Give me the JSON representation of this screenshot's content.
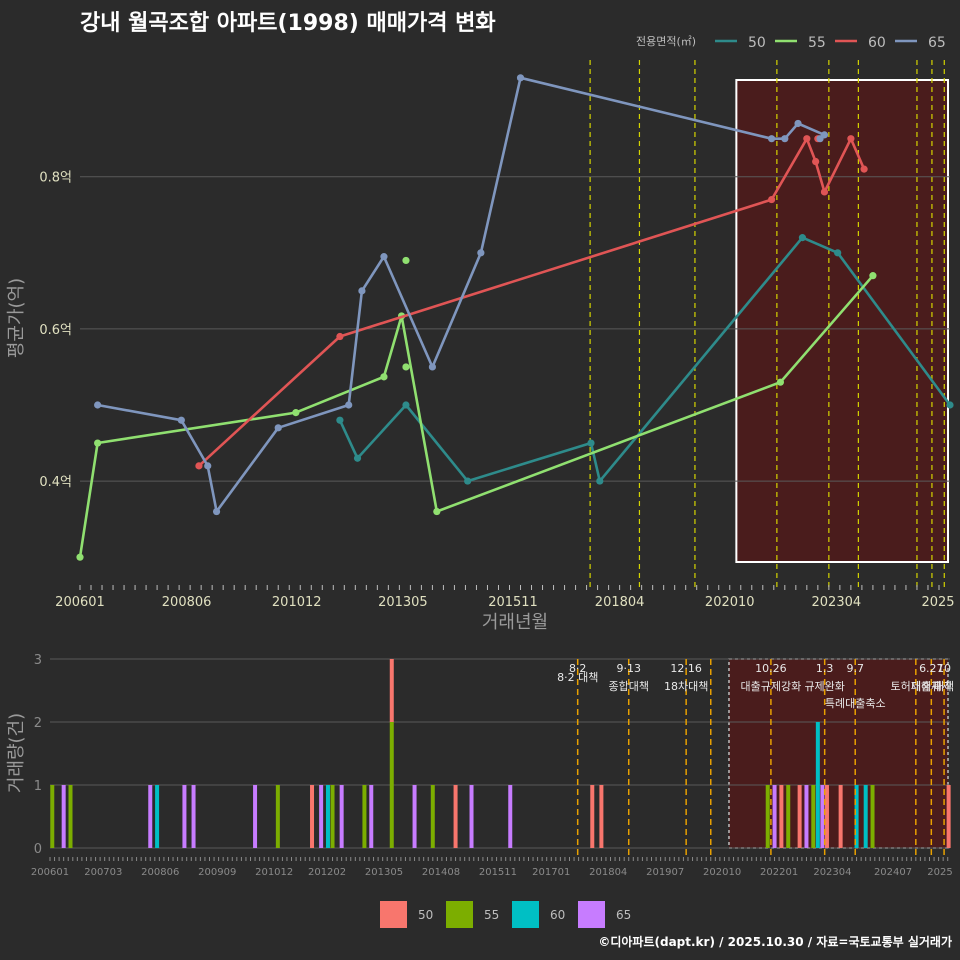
{
  "title": "강내 월곡조합 아파트(1998) 매매가격 변화",
  "footer": "©디아파트(dapt.kr) / 2025.10.30 / 자료=국토교통부 실거래가",
  "colors": {
    "50": "#2e8b8b",
    "55": "#90e070",
    "60": "#e05555",
    "65": "#7f96be"
  },
  "bar_colors": {
    "50": "#f8766d",
    "55": "#7cae00",
    "60": "#00bfc4",
    "65": "#c77cff"
  },
  "chart_data": [
    {
      "type": "line",
      "title": "강내 월곡조합 아파트(1998) 매매가격 변화",
      "xlabel": "거래년월",
      "ylabel": "평균가(억)",
      "xlim": [
        2006.0,
        2025.75
      ],
      "ylim": [
        0.27,
        0.96
      ],
      "x_ticks": [
        "200601",
        "200806",
        "201012",
        "201305",
        "201511",
        "201804",
        "202010",
        "202304",
        "2025"
      ],
      "y_ticks": [
        "0.4억",
        "0.6억",
        "0.8억"
      ],
      "legend_title": "전용면적(㎡)",
      "legend_position": "top-right",
      "highlight_range": [
        2020.9,
        2025.75
      ],
      "event_lines": [
        2017.58,
        2018.7,
        2019.96,
        2021.82,
        2023.0,
        2023.67,
        2025.0,
        2025.34,
        2025.62
      ],
      "series": [
        {
          "name": "50",
          "points": [
            [
              2011.9,
              0.48
            ],
            [
              2012.3,
              0.43
            ],
            [
              2013.4,
              0.5
            ],
            [
              2014.8,
              0.4
            ],
            [
              2017.6,
              0.45
            ],
            [
              2017.8,
              0.4
            ],
            [
              2022.4,
              0.72
            ],
            [
              2023.2,
              0.7
            ],
            [
              2025.75,
              0.5
            ]
          ]
        },
        {
          "name": "55",
          "points": [
            [
              2006.0,
              0.3
            ],
            [
              2006.4,
              0.45
            ],
            [
              2010.9,
              0.49
            ],
            [
              2012.9,
              0.537
            ],
            [
              2013.3,
              0.617
            ],
            [
              2014.1,
              0.36
            ],
            [
              2021.9,
              0.53
            ],
            [
              2024.0,
              0.67
            ]
          ],
          "extra": [
            [
              2013.4,
              0.69
            ],
            [
              2013.4,
              0.55
            ]
          ]
        },
        {
          "name": "60",
          "points": [
            [
              2008.7,
              0.42
            ],
            [
              2011.9,
              0.59
            ],
            [
              2021.7,
              0.77
            ],
            [
              2022.5,
              0.85
            ],
            [
              2022.7,
              0.82
            ],
            [
              2022.9,
              0.78
            ],
            [
              2023.5,
              0.85
            ],
            [
              2023.8,
              0.81
            ]
          ],
          "extra": [
            [
              2022.75,
              0.85
            ]
          ]
        },
        {
          "name": "65",
          "points": [
            [
              2006.4,
              0.5
            ],
            [
              2008.3,
              0.48
            ],
            [
              2008.9,
              0.42
            ],
            [
              2009.1,
              0.36
            ],
            [
              2010.5,
              0.47
            ],
            [
              2012.1,
              0.5
            ],
            [
              2012.4,
              0.65
            ],
            [
              2012.9,
              0.695
            ],
            [
              2014.0,
              0.55
            ],
            [
              2015.1,
              0.7
            ],
            [
              2016.0,
              0.93
            ],
            [
              2021.7,
              0.85
            ],
            [
              2022.0,
              0.85
            ],
            [
              2022.3,
              0.87
            ],
            [
              2022.9,
              0.855
            ],
            [
              2022.8,
              0.85
            ]
          ]
        }
      ]
    },
    {
      "type": "bar",
      "ylabel": "거래량(건)",
      "xlim": [
        2006.0,
        2025.75
      ],
      "ylim": [
        0,
        3
      ],
      "y_ticks": [
        "0",
        "1",
        "2",
        "3"
      ],
      "x_ticks": [
        "200601",
        "200703",
        "200806",
        "200909",
        "201012",
        "201202",
        "201305",
        "201408",
        "201511",
        "201701",
        "201804",
        "201907",
        "202010",
        "202201",
        "202304",
        "202407",
        "2025"
      ],
      "highlight_range": [
        2020.9,
        2025.75
      ],
      "bars": [
        {
          "x": 2006.05,
          "s": "55",
          "v": 1
        },
        {
          "x": 2006.3,
          "s": "65",
          "v": 1
        },
        {
          "x": 2006.45,
          "s": "55",
          "v": 1
        },
        {
          "x": 2008.2,
          "s": "65",
          "v": 1
        },
        {
          "x": 2008.35,
          "s": "60",
          "v": 1
        },
        {
          "x": 2008.95,
          "s": "65",
          "v": 1
        },
        {
          "x": 2009.15,
          "s": "65",
          "v": 1
        },
        {
          "x": 2010.5,
          "s": "65",
          "v": 1
        },
        {
          "x": 2011.0,
          "s": "55",
          "v": 1
        },
        {
          "x": 2011.75,
          "s": "50",
          "v": 1
        },
        {
          "x": 2011.95,
          "s": "65",
          "v": 1
        },
        {
          "x": 2012.1,
          "s": "60",
          "v": 1
        },
        {
          "x": 2012.2,
          "s": "55",
          "v": 1
        },
        {
          "x": 2012.4,
          "s": "65",
          "v": 1
        },
        {
          "x": 2012.9,
          "s": "55",
          "v": 1
        },
        {
          "x": 2013.05,
          "s": "65",
          "v": 1
        },
        {
          "x": 2013.5,
          "s": "55",
          "v": 2,
          "top": "50",
          "top_v": 1
        },
        {
          "x": 2014.0,
          "s": "65",
          "v": 1
        },
        {
          "x": 2014.4,
          "s": "55",
          "v": 1
        },
        {
          "x": 2014.9,
          "s": "50",
          "v": 1
        },
        {
          "x": 2015.25,
          "s": "65",
          "v": 1
        },
        {
          "x": 2016.1,
          "s": "65",
          "v": 1
        },
        {
          "x": 2017.9,
          "s": "50",
          "v": 1
        },
        {
          "x": 2018.1,
          "s": "50",
          "v": 1
        },
        {
          "x": 2021.75,
          "s": "55",
          "v": 1
        },
        {
          "x": 2021.9,
          "s": "65",
          "v": 1
        },
        {
          "x": 2022.05,
          "s": "50",
          "v": 1
        },
        {
          "x": 2022.2,
          "s": "55",
          "v": 1
        },
        {
          "x": 2022.45,
          "s": "50",
          "v": 1
        },
        {
          "x": 2022.6,
          "s": "65",
          "v": 1
        },
        {
          "x": 2022.75,
          "s": "55",
          "v": 1
        },
        {
          "x": 2022.85,
          "s": "60",
          "v": 2
        },
        {
          "x": 2022.95,
          "s": "65",
          "v": 1
        },
        {
          "x": 2023.05,
          "s": "50",
          "v": 1
        },
        {
          "x": 2023.35,
          "s": "50",
          "v": 1
        },
        {
          "x": 2023.7,
          "s": "60",
          "v": 1
        },
        {
          "x": 2023.9,
          "s": "60",
          "v": 1
        },
        {
          "x": 2024.05,
          "s": "55",
          "v": 1
        },
        {
          "x": 2025.72,
          "s": "50",
          "v": 1
        }
      ],
      "events": [
        {
          "x": 2017.58,
          "date": "8·2",
          "label": "8·2 대책"
        },
        {
          "x": 2018.7,
          "date": "9·13",
          "label": "종합대책"
        },
        {
          "x": 2019.96,
          "date": "12·16",
          "label": "18차대책"
        },
        {
          "x": 2020.5,
          "date": "",
          "label": ""
        },
        {
          "x": 2021.82,
          "date": "10.26",
          "label": "대출규제강화"
        },
        {
          "x": 2023.0,
          "date": "1.3",
          "label": "규제완화"
        },
        {
          "x": 2023.67,
          "date": "9.7",
          "label": "특례대출축소"
        },
        {
          "x": 2025.0,
          "date": "",
          "label": "토허제해제"
        },
        {
          "x": 2025.34,
          "date": "6.27",
          "label": "대출규제"
        },
        {
          "x": 2025.62,
          "date": "10",
          "label": "대책"
        }
      ]
    }
  ],
  "bar_legend": [
    "50",
    "55",
    "60",
    "65"
  ]
}
